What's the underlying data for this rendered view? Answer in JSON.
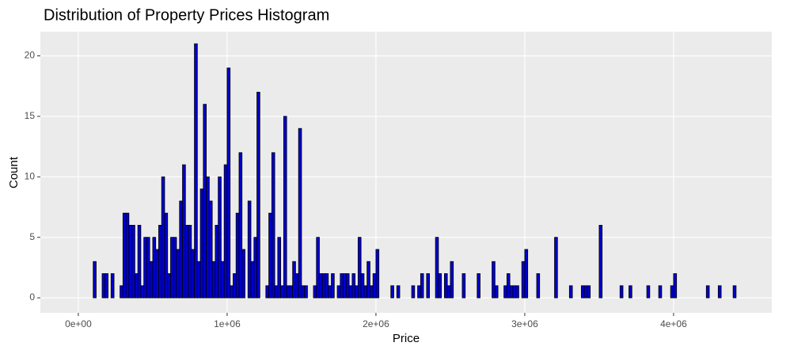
{
  "chart_data": {
    "type": "histogram",
    "title": "Distribution of Property Prices Histogram",
    "x_label": "Price",
    "y_label": "Count",
    "bins": [
      0,
      20000,
      40000,
      60000,
      80000,
      100000,
      120000,
      140000,
      160000,
      180000,
      200000,
      220000,
      240000,
      260000,
      280000,
      300000,
      320000,
      340000,
      360000,
      380000,
      400000,
      420000,
      440000,
      460000,
      480000,
      500000,
      520000,
      540000,
      560000,
      580000,
      600000,
      620000,
      640000,
      660000,
      680000,
      700000,
      720000,
      740000,
      760000,
      780000,
      800000,
      820000,
      840000,
      860000,
      880000,
      900000,
      920000,
      940000,
      960000,
      980000,
      1000000,
      1020000,
      1040000,
      1060000,
      1080000,
      1100000,
      1120000,
      1140000,
      1160000,
      1180000,
      1200000,
      1220000,
      1240000,
      1260000,
      1280000,
      1300000,
      1320000,
      1340000,
      1360000,
      1380000,
      1400000,
      1420000,
      1440000,
      1460000,
      1480000,
      1500000,
      1520000,
      1540000,
      1560000,
      1580000,
      1600000,
      1620000,
      1640000,
      1660000,
      1680000,
      1700000,
      1720000,
      1740000,
      1760000,
      1780000,
      1800000,
      1820000,
      1840000,
      1860000,
      1880000,
      1900000,
      1920000,
      1940000,
      1960000,
      1980000,
      2000000,
      2020000,
      2040000,
      2060000,
      2080000,
      2100000,
      2120000,
      2140000,
      2160000,
      2180000,
      2200000,
      2220000,
      2240000,
      2260000,
      2280000,
      2300000,
      2320000,
      2340000,
      2360000,
      2380000,
      2400000,
      2420000,
      2440000,
      2460000,
      2480000,
      2500000,
      2520000,
      2540000,
      2560000,
      2580000,
      2600000,
      2620000,
      2640000,
      2660000,
      2680000,
      2700000,
      2720000,
      2740000,
      2760000,
      2780000,
      2800000,
      2820000,
      2840000,
      2860000,
      2880000,
      2900000,
      2920000,
      2940000,
      2960000,
      2980000,
      3000000,
      3020000,
      3040000,
      3060000,
      3080000,
      3100000,
      3120000,
      3140000,
      3160000,
      3180000,
      3200000,
      3220000,
      3240000,
      3260000,
      3280000,
      3300000,
      3320000,
      3340000,
      3360000,
      3380000,
      3400000,
      3420000,
      3440000,
      3460000,
      3480000,
      3500000,
      3520000,
      3540000,
      3560000,
      3580000,
      3600000,
      3620000,
      3640000,
      3660000,
      3680000,
      3700000,
      3720000,
      3740000,
      3760000,
      3780000,
      3800000,
      3820000,
      3840000,
      3860000,
      3880000,
      3900000,
      3920000,
      3940000,
      3960000,
      3980000,
      4000000,
      4020000,
      4040000,
      4060000,
      4080000,
      4100000,
      4120000,
      4140000,
      4160000,
      4180000,
      4200000,
      4220000,
      4240000,
      4260000,
      4280000,
      4300000,
      4320000,
      4340000,
      4360000,
      4380000,
      4400000,
      4420000,
      4440000,
      4460000,
      4480000,
      4500000
    ],
    "counts": [
      0,
      0,
      0,
      0,
      0,
      3,
      0,
      0,
      2,
      2,
      0,
      2,
      0,
      0,
      1,
      7,
      7,
      6,
      6,
      2,
      6,
      1,
      5,
      5,
      3,
      5,
      4,
      6,
      10,
      7,
      2,
      5,
      5,
      4,
      8,
      11,
      6,
      6,
      4,
      21,
      3,
      9,
      16,
      10,
      8,
      3,
      6,
      10,
      3,
      11,
      19,
      1,
      2,
      7,
      12,
      4,
      0,
      8,
      3,
      5,
      17,
      0,
      0,
      1,
      7,
      12,
      1,
      5,
      1,
      15,
      1,
      1,
      3,
      2,
      14,
      1,
      1,
      0,
      0,
      1,
      5,
      2,
      2,
      2,
      1,
      2,
      0,
      1,
      2,
      2,
      2,
      1,
      2,
      1,
      5,
      2,
      1,
      3,
      1,
      2,
      4,
      0,
      0,
      0,
      0,
      1,
      0,
      1,
      0,
      0,
      0,
      0,
      1,
      0,
      1,
      2,
      0,
      2,
      0,
      0,
      5,
      2,
      0,
      2,
      1,
      3,
      0,
      0,
      0,
      2,
      0,
      0,
      0,
      0,
      2,
      0,
      0,
      0,
      0,
      3,
      1,
      0,
      0,
      1,
      2,
      1,
      1,
      1,
      0,
      3,
      4,
      0,
      0,
      0,
      2,
      0,
      0,
      0,
      0,
      0,
      5,
      0,
      0,
      0,
      0,
      1,
      0,
      0,
      0,
      1,
      1,
      1,
      0,
      0,
      0,
      6,
      0,
      0,
      0,
      0,
      0,
      0,
      1,
      0,
      0,
      1,
      0,
      0,
      0,
      0,
      0,
      1,
      0,
      0,
      0,
      1,
      0,
      0,
      0,
      1,
      2,
      0,
      0,
      0,
      0,
      0,
      0,
      0,
      0,
      0,
      0,
      1,
      0,
      0,
      0,
      1,
      0,
      0,
      0,
      0,
      1,
      0,
      0,
      0,
      0
    ],
    "color": "#0000cd",
    "edge_color": "#000000",
    "xlim": [
      -255000,
      4660000
    ],
    "ylim": [
      -1.24,
      22
    ],
    "xticks": [
      {
        "value": 0,
        "label": "0e+00"
      },
      {
        "value": 1000000,
        "label": "1e+06"
      },
      {
        "value": 2000000,
        "label": "2e+06"
      },
      {
        "value": 3000000,
        "label": "3e+06"
      },
      {
        "value": 4000000,
        "label": "4e+06"
      }
    ],
    "yticks": [
      0,
      5,
      10,
      15,
      20
    ],
    "grid": true
  }
}
